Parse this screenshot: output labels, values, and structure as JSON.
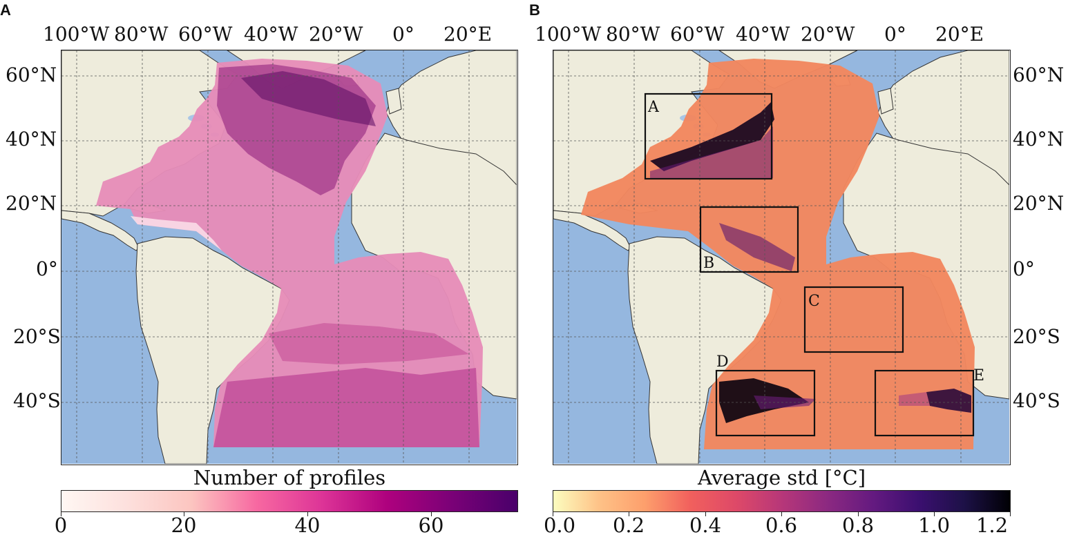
{
  "panels": [
    {
      "letter": "A",
      "top_lon_labels": [
        "100°W",
        "80°W",
        "60°W",
        "40°W",
        "20°W",
        "0°",
        "20°E"
      ],
      "left_lat_labels": [
        "60°N",
        "40°N",
        "20°N",
        "0°",
        "20°S",
        "40°S"
      ],
      "colorbar": {
        "title": "Number of profiles",
        "ticks": [
          "0",
          "20",
          "40",
          "60"
        ],
        "range": [
          0,
          74
        ],
        "colormap": [
          "#fff7f3",
          "#fcc5c0",
          "#f768a1",
          "#ae017e",
          "#49006a"
        ]
      }
    },
    {
      "letter": "B",
      "top_lon_labels": [
        "100°W",
        "80°W",
        "60°W",
        "40°W",
        "20°W",
        "0°",
        "20°E"
      ],
      "right_lat_labels": [
        "60°N",
        "40°N",
        "20°N",
        "0°",
        "20°S",
        "40°S"
      ],
      "regions": [
        {
          "label": "A"
        },
        {
          "label": "B"
        },
        {
          "label": "C"
        },
        {
          "label": "D"
        },
        {
          "label": "E"
        }
      ],
      "colorbar": {
        "title": "Average std [°C]",
        "ticks": [
          "0.0",
          "0.2",
          "0.4",
          "0.6",
          "0.8",
          "1.0",
          "1.2"
        ],
        "range": [
          0.0,
          1.2
        ],
        "colormap": [
          "#fcfdbf",
          "#fd9f6c",
          "#de4968",
          "#8c2981",
          "#3b0f70",
          "#000004"
        ]
      }
    }
  ],
  "colors": {
    "ocean": "#95b7df",
    "land": "#eeecdc",
    "lakes": "#a9c6e6"
  }
}
